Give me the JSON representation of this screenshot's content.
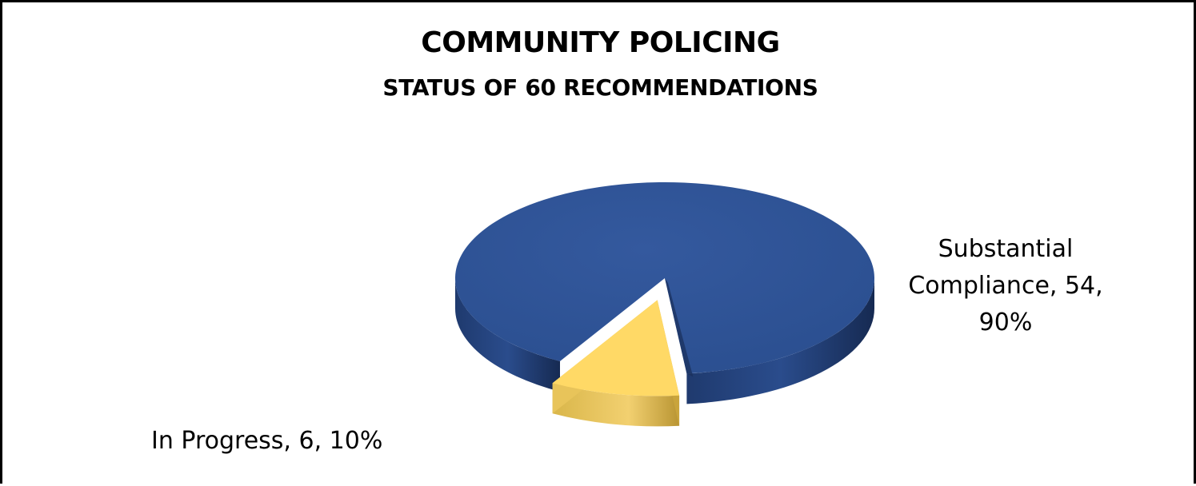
{
  "chart_data": {
    "type": "pie",
    "title": "COMMUNITY POLICING",
    "subtitle": "STATUS OF 60 RECOMMENDATIONS",
    "categories": [
      "Substantial Compliance",
      "In Progress"
    ],
    "values": [
      54,
      6
    ],
    "percents": [
      90,
      10
    ],
    "labels": [
      "Substantial\nCompliance, 54,\n90%",
      "In Progress, 6, 10%"
    ],
    "colors": [
      "#2F5496",
      "#FFD966"
    ],
    "style": "3d-exploded",
    "legend": "none"
  }
}
